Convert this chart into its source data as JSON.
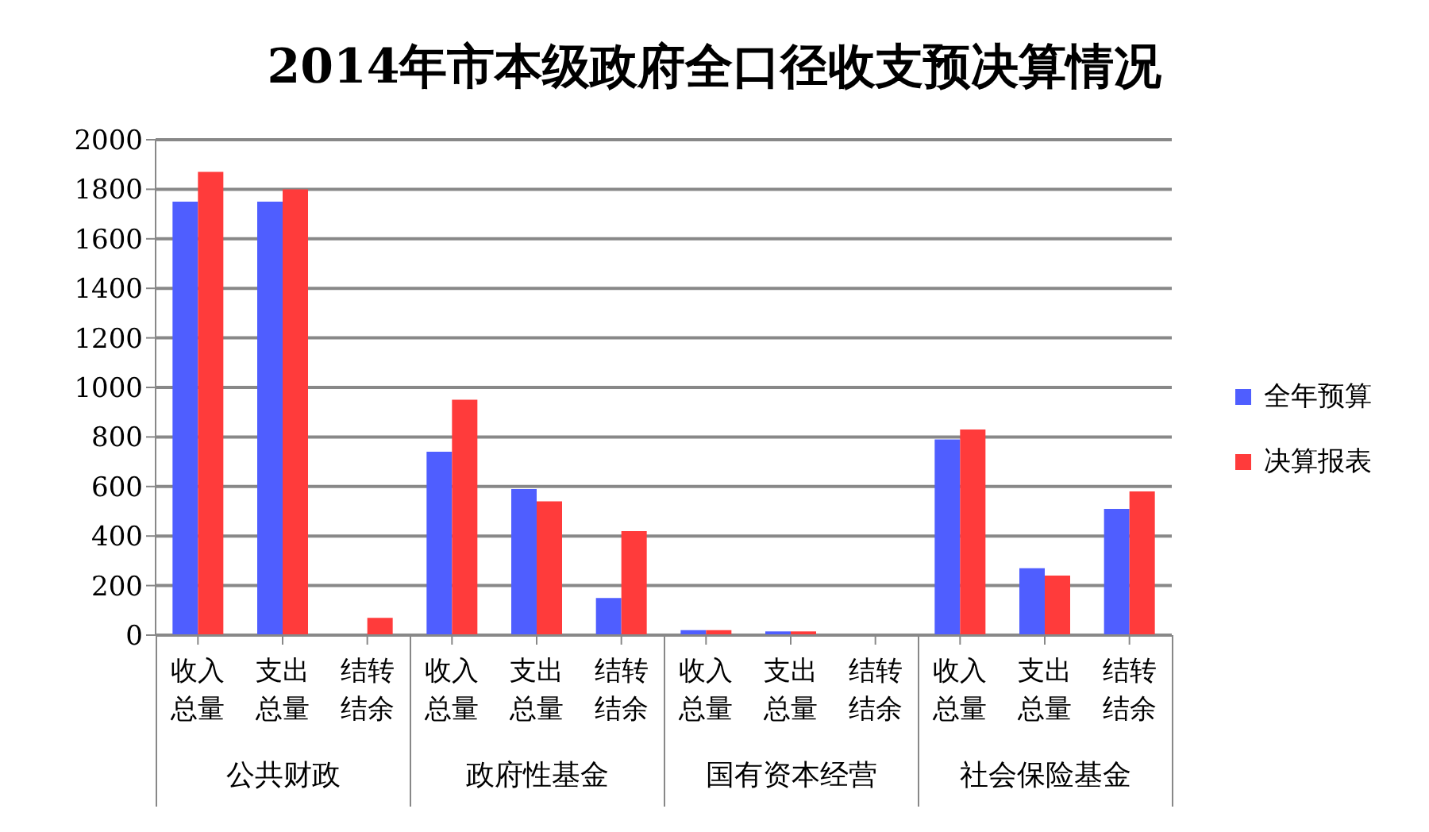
{
  "chart_data": {
    "type": "bar",
    "title": "2014年市本级政府全口径收支预决算情况",
    "categories": [
      "收入总量",
      "支出总量",
      "结转结余",
      "收入总量",
      "支出总量",
      "结转结余",
      "收入总量",
      "支出总量",
      "结转结余",
      "收入总量",
      "支出总量",
      "结转结余"
    ],
    "series": [
      {
        "name": "全年预算",
        "color": "#4f5eff",
        "values": [
          1750,
          1750,
          0,
          740,
          590,
          150,
          20,
          15,
          0,
          790,
          270,
          510
        ]
      },
      {
        "name": "决算报表",
        "color": "#ff3b3b",
        "values": [
          1870,
          1800,
          70,
          950,
          540,
          420,
          20,
          15,
          0,
          830,
          240,
          580
        ]
      }
    ],
    "annotations": [
      "公共财政",
      "政府性基金",
      "国有资本经营",
      "社会保险基金"
    ],
    "ylim": [
      0,
      2000
    ],
    "yticks": [
      0,
      200,
      400,
      600,
      800,
      1000,
      1200,
      1400,
      1600,
      1800,
      2000
    ],
    "grid": "y",
    "legend": "right"
  }
}
